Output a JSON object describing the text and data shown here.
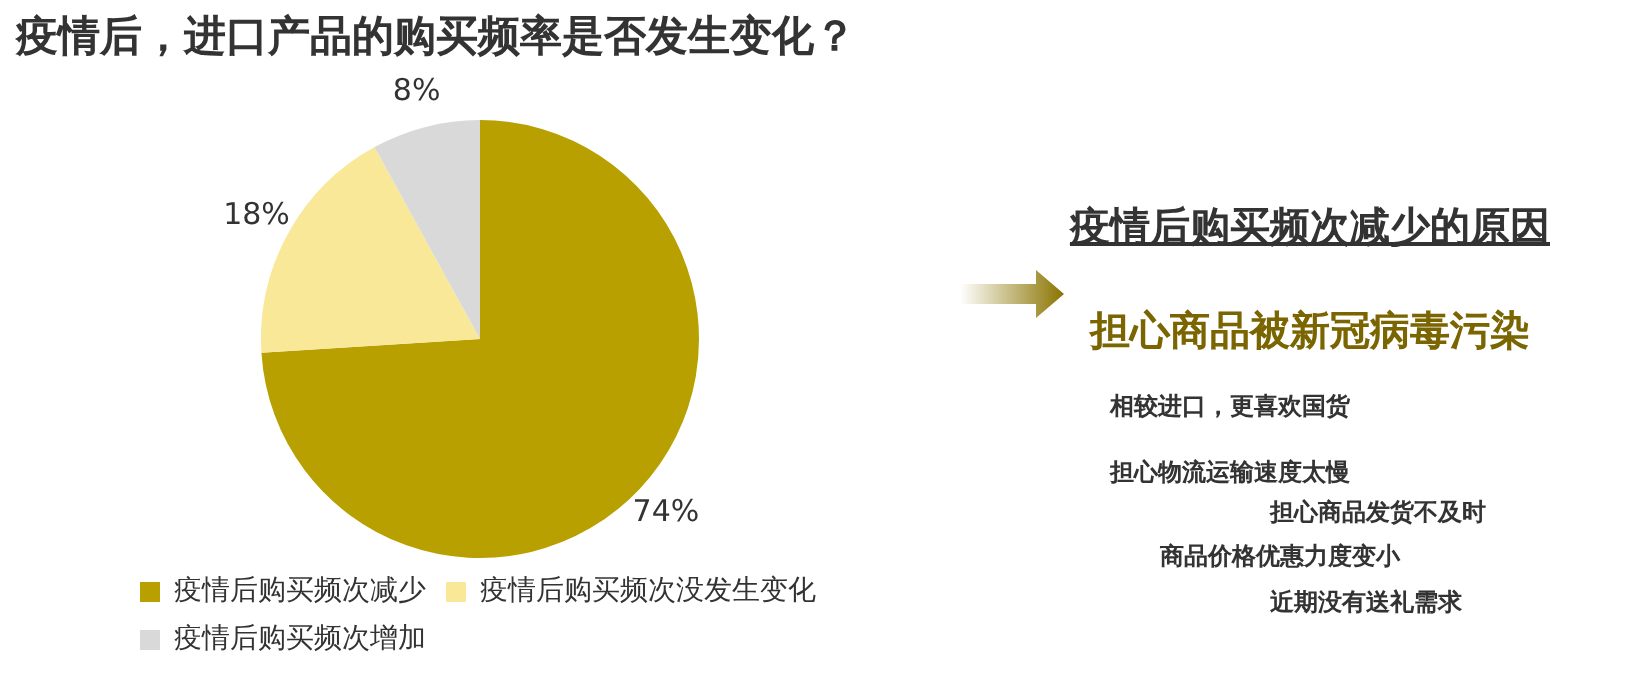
{
  "chart_data": {
    "type": "pie",
    "title": "疫情后，进口产品的购买频率是否发生变化？",
    "categories": [
      "疫情后购买频次减少",
      "疫情后购买频次没发生变化",
      "疫情后购买频次增加"
    ],
    "values": [
      74,
      18,
      8
    ],
    "colors": [
      "#b8a000",
      "#f8e898",
      "#d9d9d9"
    ],
    "value_labels": [
      "74%",
      "18%",
      "8%"
    ],
    "legend": "bottom",
    "annotations": [
      "疫情后购买频次减少的原因",
      "担心商品被新冠病毒污染",
      "相较进口，更喜欢国货",
      "担心物流运输速度太慢",
      "担心商品发货不及时",
      "商品价格优惠力度变小",
      "近期没有送礼需求"
    ]
  }
}
